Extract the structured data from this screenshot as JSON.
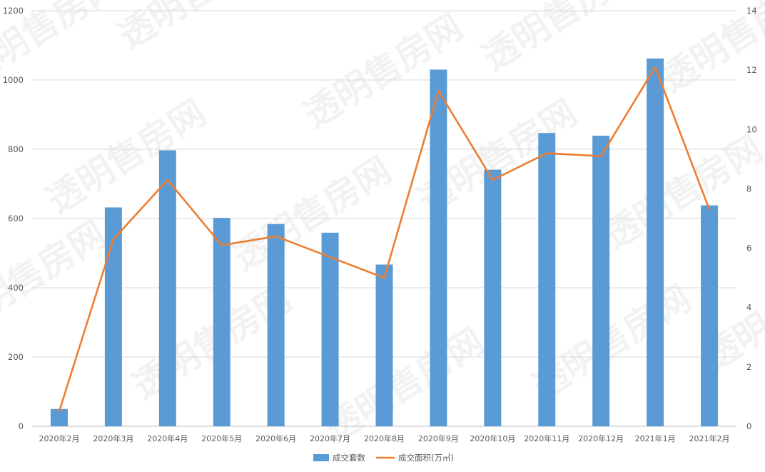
{
  "watermark": {
    "text": "透明售房网"
  },
  "chart_data": {
    "type": "bar",
    "categories": [
      "2020年2月",
      "2020年3月",
      "2020年4月",
      "2020年5月",
      "2020年6月",
      "2020年7月",
      "2020年8月",
      "2020年9月",
      "2020年10月",
      "2020年11月",
      "2020年12月",
      "2021年1月",
      "2021年2月"
    ],
    "series": [
      {
        "name": "成交套数",
        "type": "bar",
        "axis": "left",
        "color": "#5b9bd5",
        "values": [
          50,
          632,
          797,
          602,
          584,
          559,
          467,
          1030,
          741,
          847,
          839,
          1062,
          638
        ]
      },
      {
        "name": "成交面积(万㎡)",
        "type": "line",
        "axis": "right",
        "color": "#ed7d31",
        "values": [
          0.5,
          6.3,
          8.3,
          6.1,
          6.4,
          5.7,
          5.0,
          11.3,
          8.3,
          9.2,
          9.1,
          12.1,
          7.3
        ]
      }
    ],
    "y_left": {
      "min": 0,
      "max": 1200,
      "ticks": [
        0,
        200,
        400,
        600,
        800,
        1000,
        1200
      ]
    },
    "y_right": {
      "min": 0,
      "max": 14,
      "ticks": [
        0,
        2,
        4,
        6,
        8,
        10,
        12,
        14
      ]
    },
    "grid": true,
    "legend_position": "bottom"
  }
}
